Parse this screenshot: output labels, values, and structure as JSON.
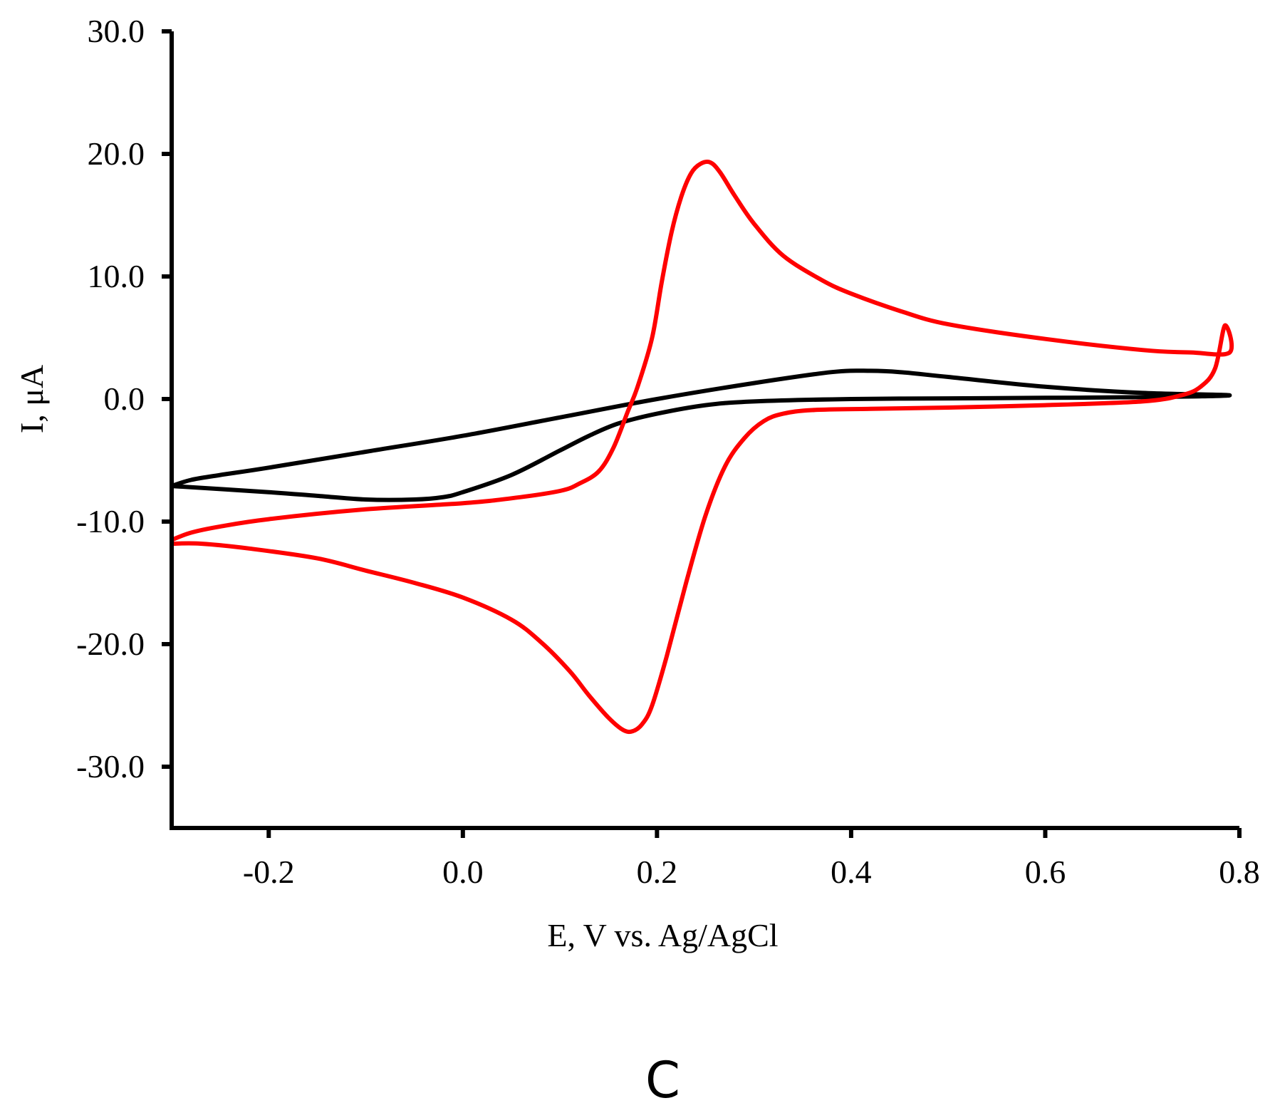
{
  "chart_data": {
    "type": "line",
    "title": "",
    "xlabel": "E, V vs. Ag/AgCl",
    "ylabel": "I, μA",
    "xlim": [
      -0.3,
      0.8
    ],
    "ylim": [
      -35,
      30
    ],
    "xticks": [
      -0.2,
      0.0,
      0.2,
      0.4,
      0.6,
      0.8
    ],
    "xtick_labels": [
      "-0.2",
      "0.0",
      "0.2",
      "0.4",
      "0.6",
      "0.8"
    ],
    "yticks": [
      30,
      20,
      10,
      0,
      -10,
      -20,
      -30
    ],
    "ytick_labels": [
      "30.0",
      "20.0",
      "10.0",
      "0.0",
      "-10.0",
      "-20.0",
      "-30.0"
    ],
    "grid": false,
    "legend": null,
    "panel_label": "C",
    "series": [
      {
        "name": "black",
        "color": "#000000",
        "points": [
          [
            -0.3,
            -7.1
          ],
          [
            -0.2,
            -7.6
          ],
          [
            -0.15,
            -7.9
          ],
          [
            -0.1,
            -8.2
          ],
          [
            -0.05,
            -8.2
          ],
          [
            -0.02,
            -8.0
          ],
          [
            0.0,
            -7.6
          ],
          [
            0.05,
            -6.2
          ],
          [
            0.1,
            -4.2
          ],
          [
            0.13,
            -3.0
          ],
          [
            0.16,
            -2.0
          ],
          [
            0.2,
            -1.2
          ],
          [
            0.25,
            -0.5
          ],
          [
            0.3,
            -0.2
          ],
          [
            0.4,
            0.0
          ],
          [
            0.5,
            0.05
          ],
          [
            0.6,
            0.1
          ],
          [
            0.7,
            0.15
          ],
          [
            0.79,
            0.3
          ],
          [
            0.7,
            0.5
          ],
          [
            0.6,
            1.0
          ],
          [
            0.5,
            1.8
          ],
          [
            0.45,
            2.2
          ],
          [
            0.42,
            2.3
          ],
          [
            0.38,
            2.2
          ],
          [
            0.3,
            1.3
          ],
          [
            0.2,
            0.0
          ],
          [
            0.1,
            -1.5
          ],
          [
            0.0,
            -3.0
          ],
          [
            -0.1,
            -4.3
          ],
          [
            -0.2,
            -5.6
          ],
          [
            -0.25,
            -6.2
          ],
          [
            -0.28,
            -6.6
          ],
          [
            -0.3,
            -7.1
          ]
        ]
      },
      {
        "name": "red",
        "color": "#ff0000",
        "points": [
          [
            -0.3,
            -11.8
          ],
          [
            -0.27,
            -11.8
          ],
          [
            -0.22,
            -12.2
          ],
          [
            -0.15,
            -13.0
          ],
          [
            -0.1,
            -14.0
          ],
          [
            -0.05,
            -15.0
          ],
          [
            0.0,
            -16.2
          ],
          [
            0.05,
            -18.0
          ],
          [
            0.08,
            -19.8
          ],
          [
            0.11,
            -22.2
          ],
          [
            0.13,
            -24.2
          ],
          [
            0.15,
            -26.0
          ],
          [
            0.165,
            -27.0
          ],
          [
            0.175,
            -27.1
          ],
          [
            0.185,
            -26.5
          ],
          [
            0.195,
            -25.0
          ],
          [
            0.21,
            -21.0
          ],
          [
            0.23,
            -15.0
          ],
          [
            0.25,
            -9.5
          ],
          [
            0.27,
            -5.5
          ],
          [
            0.29,
            -3.2
          ],
          [
            0.31,
            -1.8
          ],
          [
            0.33,
            -1.2
          ],
          [
            0.36,
            -0.9
          ],
          [
            0.42,
            -0.8
          ],
          [
            0.5,
            -0.7
          ],
          [
            0.6,
            -0.5
          ],
          [
            0.7,
            -0.2
          ],
          [
            0.74,
            0.3
          ],
          [
            0.76,
            1.0
          ],
          [
            0.775,
            2.5
          ],
          [
            0.785,
            6.0
          ],
          [
            0.79,
            3.8
          ],
          [
            0.75,
            3.8
          ],
          [
            0.7,
            4.0
          ],
          [
            0.6,
            4.9
          ],
          [
            0.5,
            6.1
          ],
          [
            0.45,
            7.2
          ],
          [
            0.4,
            8.6
          ],
          [
            0.37,
            9.7
          ],
          [
            0.33,
            11.7
          ],
          [
            0.3,
            14.3
          ],
          [
            0.28,
            16.6
          ],
          [
            0.265,
            18.5
          ],
          [
            0.255,
            19.3
          ],
          [
            0.245,
            19.2
          ],
          [
            0.235,
            18.4
          ],
          [
            0.225,
            16.5
          ],
          [
            0.215,
            13.6
          ],
          [
            0.205,
            9.6
          ],
          [
            0.195,
            5.0
          ],
          [
            0.18,
            1.0
          ],
          [
            0.17,
            -1.0
          ],
          [
            0.155,
            -4.0
          ],
          [
            0.14,
            -5.9
          ],
          [
            0.12,
            -6.9
          ],
          [
            0.1,
            -7.5
          ],
          [
            0.05,
            -8.1
          ],
          [
            0.0,
            -8.5
          ],
          [
            -0.1,
            -9.0
          ],
          [
            -0.2,
            -9.8
          ],
          [
            -0.25,
            -10.4
          ],
          [
            -0.28,
            -10.9
          ],
          [
            -0.3,
            -11.5
          ]
        ]
      }
    ]
  }
}
